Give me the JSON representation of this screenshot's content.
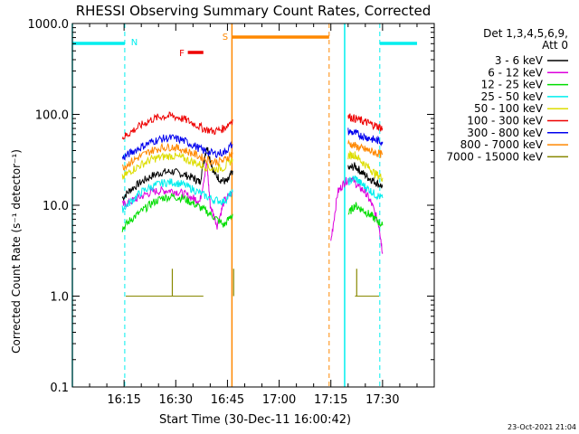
{
  "chart_data": {
    "type": "line",
    "title": "RHESSI Observing Summary Count Rates, Corrected",
    "xlabel": "Start Time (30-Dec-11 16:00:42)",
    "ylabel": "Corrected Count Rate (s⁻¹ detector⁻¹)",
    "y_scale": "log",
    "xlim_minutes": [
      0,
      105
    ],
    "ylim": [
      0.1,
      1000
    ],
    "x_tick_labels": [
      "16:15",
      "16:30",
      "16:45",
      "17:00",
      "17:15",
      "17:30"
    ],
    "x_tick_minutes": [
      15,
      30,
      45,
      60,
      75,
      90
    ],
    "y_tick_labels": [
      "0.1",
      "1.0",
      "10.0",
      "100.0",
      "1000.0"
    ],
    "y_tick_values": [
      0.1,
      1,
      10,
      100,
      1000
    ],
    "legend": {
      "header_line1": "Det 1,3,4,5,6,9,",
      "header_line2": "Att 0",
      "placement": "right"
    },
    "series": [
      {
        "name": "3 - 6 keV",
        "color": "#000000",
        "segments": [
          {
            "x": [
              14.5,
              17,
              20,
              23,
              26,
              29,
              32,
              35,
              37,
              39,
              41,
              43,
              45,
              46.5
            ],
            "y": [
              12,
              15,
              18,
              21,
              23,
              23.5,
              22,
              20,
              18,
              45,
              23,
              19,
              18,
              24
            ]
          },
          {
            "x": [
              80,
              82,
              84,
              86,
              88,
              90
            ],
            "y": [
              25,
              27,
              23,
              20,
              18,
              16
            ]
          }
        ]
      },
      {
        "name": "6 - 12 keV",
        "color": "#dd00dd",
        "segments": [
          {
            "x": [
              14.5,
              17,
              20,
              23,
              26,
              29,
              32,
              35,
              37,
              39,
              40,
              42,
              44,
              46.5
            ],
            "y": [
              10,
              11,
              12.5,
              14,
              14.5,
              14.5,
              13.5,
              12,
              11,
              30,
              10,
              6,
              11,
              14
            ]
          },
          {
            "x": [
              75,
              77,
              79,
              81,
              83,
              85,
              87,
              89,
              90
            ],
            "y": [
              4,
              14,
              18,
              20,
              16,
              14,
              10,
              6,
              3
            ]
          }
        ]
      },
      {
        "name": "12 - 25 keV",
        "color": "#00dd00",
        "segments": [
          {
            "x": [
              14.5,
              17,
              20,
              23,
              26,
              29,
              32,
              35,
              38,
              41,
              44,
              46.5
            ],
            "y": [
              5.5,
              7,
              8.5,
              10.5,
              12,
              12.5,
              12,
              10.5,
              9,
              7.5,
              6,
              8
            ]
          },
          {
            "x": [
              80,
              82,
              84,
              86,
              88,
              90
            ],
            "y": [
              8,
              10,
              9,
              8,
              7,
              6
            ]
          }
        ]
      },
      {
        "name": "25 - 50 keV",
        "color": "#00eeee",
        "segments": [
          {
            "x": [
              14.5,
              17,
              20,
              23,
              26,
              29,
              32,
              35,
              38,
              41,
              44,
              46.5
            ],
            "y": [
              9,
              11,
              14,
              16,
              17.5,
              18,
              17,
              15,
              13,
              11.5,
              11,
              14
            ]
          },
          {
            "x": [
              80,
              82,
              84,
              86,
              88,
              90
            ],
            "y": [
              18,
              20,
              17,
              15,
              13,
              12
            ]
          }
        ]
      },
      {
        "name": "50 - 100 keV",
        "color": "#dddd00",
        "segments": [
          {
            "x": [
              14.5,
              17,
              20,
              23,
              26,
              29,
              32,
              35,
              38,
              41,
              44,
              46.5
            ],
            "y": [
              20,
              24,
              28,
              32,
              34,
              35,
              33,
              30,
              27,
              25,
              26,
              32
            ]
          },
          {
            "x": [
              80,
              82,
              84,
              86,
              88,
              90
            ],
            "y": [
              35,
              36,
              30,
              26,
              22,
              20
            ]
          }
        ]
      },
      {
        "name": "100 - 300 keV",
        "color": "#ee0000",
        "segments": [
          {
            "x": [
              14.5,
              17,
              20,
              23,
              26,
              29,
              32,
              35,
              38,
              41,
              44,
              46.5
            ],
            "y": [
              55,
              64,
              76,
              88,
              95,
              96,
              90,
              80,
              70,
              65,
              70,
              88
            ]
          },
          {
            "x": [
              80,
              82,
              84,
              86,
              88,
              90
            ],
            "y": [
              95,
              90,
              85,
              80,
              75,
              70
            ]
          }
        ]
      },
      {
        "name": "300 - 800 keV",
        "color": "#0000ee",
        "segments": [
          {
            "x": [
              14.5,
              17,
              20,
              23,
              26,
              29,
              32,
              35,
              38,
              41,
              44,
              46.5
            ],
            "y": [
              33,
              38,
              44,
              50,
              54,
              55,
              52,
              46,
              40,
              37,
              38,
              47
            ]
          },
          {
            "x": [
              80,
              82,
              84,
              86,
              88,
              90
            ],
            "y": [
              65,
              62,
              58,
              55,
              52,
              50
            ]
          }
        ]
      },
      {
        "name": "800 - 7000 keV",
        "color": "#ff8800",
        "segments": [
          {
            "x": [
              14.5,
              17,
              20,
              23,
              26,
              29,
              32,
              35,
              38,
              41,
              44,
              46.5
            ],
            "y": [
              26,
              30,
              35,
              40,
              43,
              44,
              41,
              37,
              33,
              30,
              31,
              38
            ]
          },
          {
            "x": [
              80,
              82,
              84,
              86,
              88,
              90
            ],
            "y": [
              48,
              45,
              42,
              40,
              38,
              36
            ]
          }
        ]
      },
      {
        "name": "7000 - 15000 keV",
        "color": "#888800",
        "segments": [
          {
            "x": [
              15.5,
              18,
              21,
              24,
              27,
              29,
              30,
              31,
              33,
              36,
              38
            ],
            "y": [
              1,
              1,
              1,
              1,
              1,
              1,
              1,
              1,
              1,
              1,
              1
            ]
          },
          {
            "x": [
              29
            ],
            "y": [
              2
            ]
          },
          {
            "x": [
              46.8
            ],
            "y": [
              2
            ]
          },
          {
            "x": [
              82,
              84,
              86,
              88,
              89
            ],
            "y": [
              1,
              1,
              1,
              1,
              1
            ]
          },
          {
            "x": [
              82.5
            ],
            "y": [
              2
            ]
          }
        ]
      }
    ],
    "events": [
      {
        "label": "N",
        "color": "#00eeee",
        "dashed_lines_min": [
          15.2,
          89.2
        ],
        "bar_min": [
          89.2,
          100
        ]
      },
      {
        "label": "",
        "color": "#00eeee",
        "solid_lines_min": [
          0,
          79
        ],
        "bar_min": [
          0,
          15.2
        ]
      },
      {
        "label": "S",
        "color": "#ff8800",
        "solid_lines_min": [
          46.3
        ],
        "dashed_lines_min": [
          74.5
        ],
        "bar_min": [
          46.3,
          74.5
        ]
      },
      {
        "label": "F",
        "color": "#ee0000",
        "bar_min": [
          33.5,
          38
        ]
      }
    ],
    "footer_date": "23-Oct-2021 21:04"
  }
}
